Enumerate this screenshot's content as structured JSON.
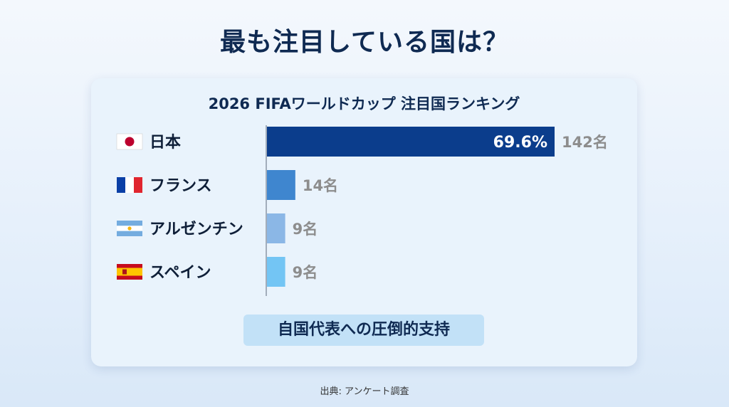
{
  "header": {
    "title": "最も注目している国は？"
  },
  "card": {
    "tagline": "自国代表への圧倒的支持"
  },
  "footer": {
    "source": "出典: アンケート調査"
  },
  "chart_data": {
    "type": "bar",
    "orientation": "horizontal",
    "title": "2026 FIFAワールドカップ 注目国ランキング",
    "categories": [
      "日本",
      "フランス",
      "アルゼンチン",
      "スペイン"
    ],
    "values": [
      142,
      14,
      9,
      9
    ],
    "value_labels": [
      "142名",
      "14名",
      "9名",
      "9名"
    ],
    "inner_labels": [
      "69.6%",
      "",
      "",
      ""
    ],
    "bar_colors": [
      "#0b3d8c",
      "#3f86cf",
      "#8bb7e6",
      "#73c5f4"
    ],
    "flags": [
      "japan-flag",
      "france-flag",
      "argentina-flag",
      "spain-flag"
    ],
    "xlim": [
      0,
      142
    ],
    "grid": false,
    "legend": "none"
  }
}
